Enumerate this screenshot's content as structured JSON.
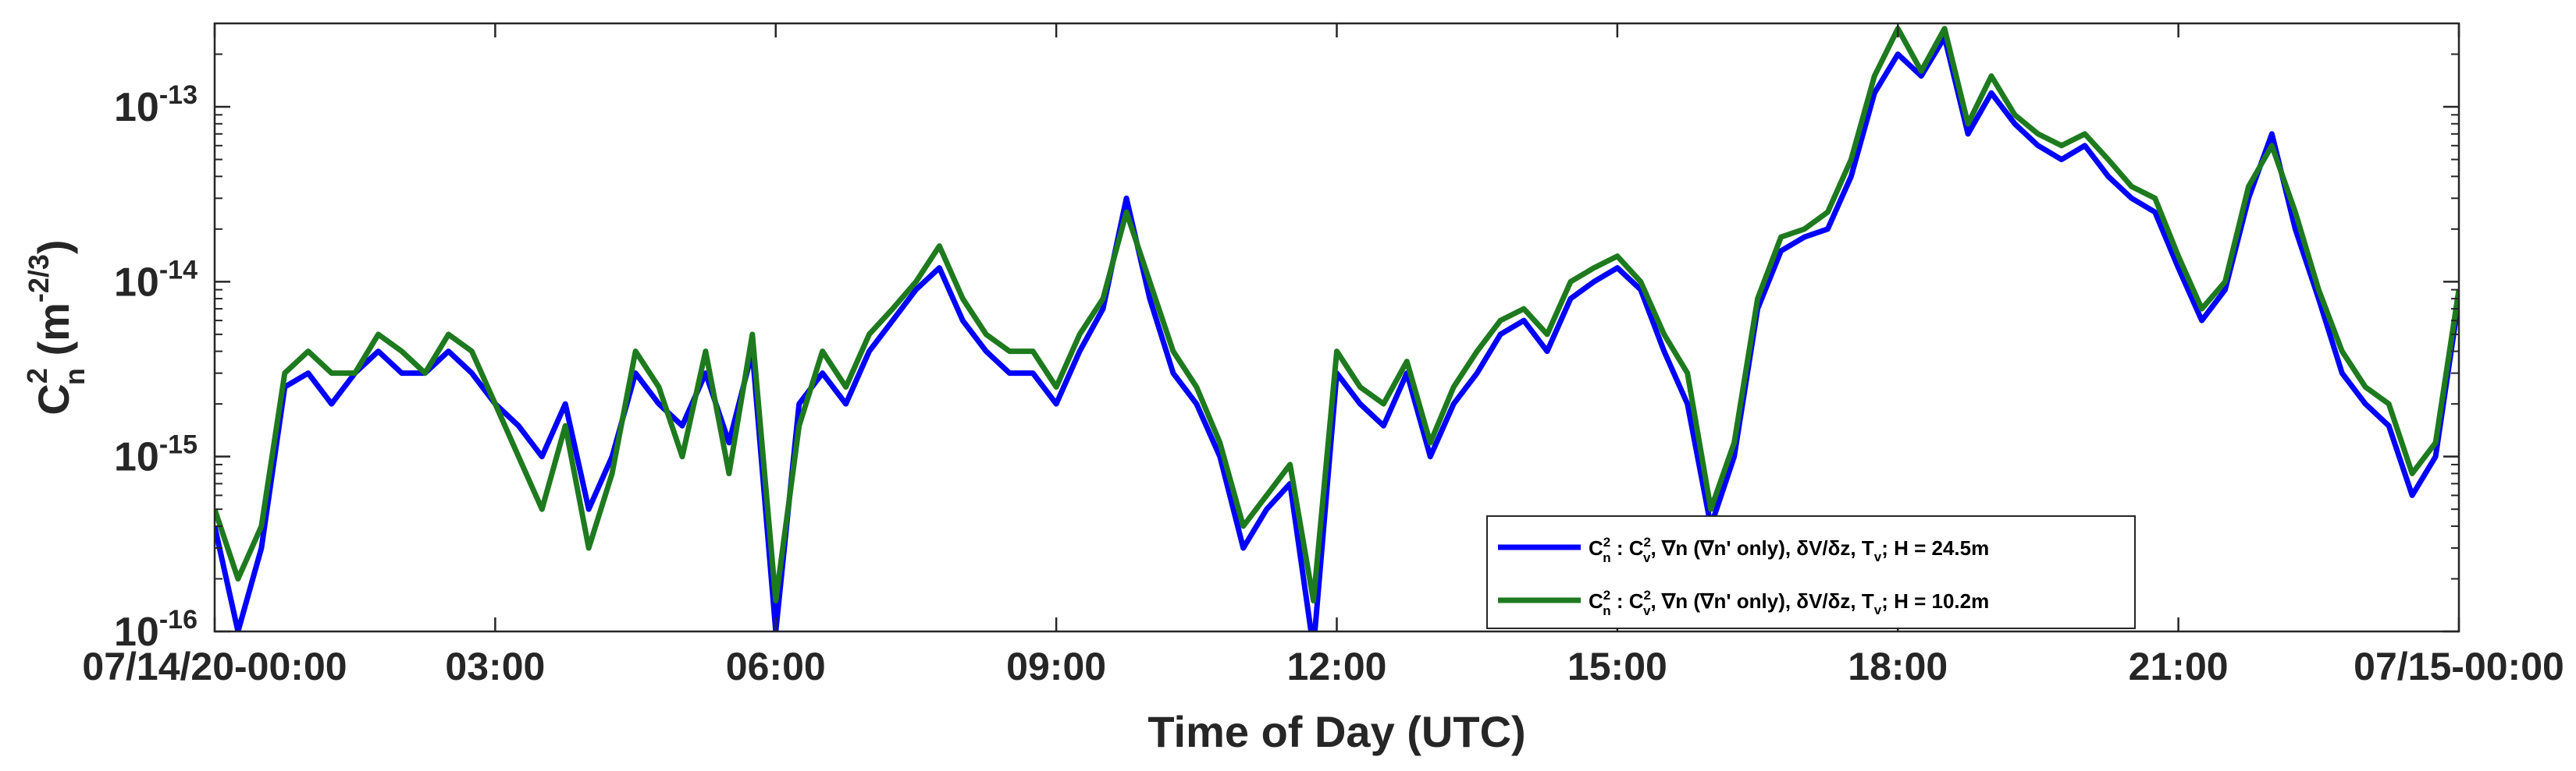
{
  "chart_data": {
    "type": "line",
    "xlabel": "Time of Day (UTC)",
    "ylabel": {
      "base": "C",
      "sup": "2",
      "sub": "n",
      "units_pre": "(m",
      "units_sup": "-2/3",
      "units_post": ")"
    },
    "x_range_hours": [
      0,
      24
    ],
    "y_scale": "log",
    "ylim": [
      1e-16,
      3e-13
    ],
    "grid": false,
    "legend_placement": "bottom-right",
    "x_ticks": [
      {
        "hour": 0,
        "label": "07/14/20-00:00"
      },
      {
        "hour": 3,
        "label": "03:00"
      },
      {
        "hour": 6,
        "label": "06:00"
      },
      {
        "hour": 9,
        "label": "09:00"
      },
      {
        "hour": 12,
        "label": "12:00"
      },
      {
        "hour": 15,
        "label": "15:00"
      },
      {
        "hour": 18,
        "label": "18:00"
      },
      {
        "hour": 21,
        "label": "21:00"
      },
      {
        "hour": 24,
        "label": "07/15-00:00"
      }
    ],
    "y_ticks": [
      {
        "value": 1e-16,
        "base": "10",
        "exp": "-16"
      },
      {
        "value": 1e-15,
        "base": "10",
        "exp": "-15"
      },
      {
        "value": 1e-14,
        "base": "10",
        "exp": "-14"
      },
      {
        "value": 1e-13,
        "base": "10",
        "exp": "-13"
      }
    ],
    "x_hours": [
      0.0,
      0.25,
      0.5,
      0.75,
      1.0,
      1.25,
      1.5,
      1.75,
      2.0,
      2.25,
      2.5,
      2.75,
      3.0,
      3.25,
      3.5,
      3.75,
      4.0,
      4.25,
      4.5,
      4.75,
      5.0,
      5.25,
      5.5,
      5.75,
      6.0,
      6.25,
      6.5,
      6.75,
      7.0,
      7.25,
      7.5,
      7.75,
      8.0,
      8.25,
      8.5,
      8.75,
      9.0,
      9.25,
      9.5,
      9.75,
      10.0,
      10.25,
      10.5,
      10.75,
      11.0,
      11.25,
      11.5,
      11.75,
      12.0,
      12.25,
      12.5,
      12.75,
      13.0,
      13.25,
      13.5,
      13.75,
      14.0,
      14.25,
      14.5,
      14.75,
      15.0,
      15.25,
      15.5,
      15.75,
      16.0,
      16.25,
      16.5,
      16.75,
      17.0,
      17.25,
      17.5,
      17.75,
      18.0,
      18.25,
      18.5,
      18.75,
      19.0,
      19.25,
      19.5,
      19.75,
      20.0,
      20.25,
      20.5,
      20.75,
      21.0,
      21.25,
      21.5,
      21.75,
      22.0,
      22.25,
      22.5,
      22.75,
      23.0,
      23.25,
      23.5,
      23.75,
      24.0
    ],
    "series": [
      {
        "name": "H = 24.5m",
        "color": "#0000ff",
        "values": [
          4e-16,
          1e-16,
          3e-16,
          2.5e-15,
          3e-15,
          2e-15,
          3e-15,
          4e-15,
          3e-15,
          3e-15,
          4e-15,
          3e-15,
          2e-15,
          1.5e-15,
          1e-15,
          2e-15,
          5e-16,
          1e-15,
          3e-15,
          2e-15,
          1.5e-15,
          3e-15,
          1.2e-15,
          4e-15,
          1e-16,
          2e-15,
          3e-15,
          2e-15,
          4e-15,
          6e-15,
          9e-15,
          1.2e-14,
          6e-15,
          4e-15,
          3e-15,
          3e-15,
          2e-15,
          4e-15,
          7e-15,
          3e-14,
          8e-15,
          3e-15,
          2e-15,
          1e-15,
          3e-16,
          5e-16,
          7e-16,
          8e-17,
          3e-15,
          2e-15,
          1.5e-15,
          3e-15,
          1e-15,
          2e-15,
          3e-15,
          5e-15,
          6e-15,
          4e-15,
          8e-15,
          1e-14,
          1.2e-14,
          9e-15,
          4e-15,
          2e-15,
          4e-16,
          1e-15,
          7e-15,
          1.5e-14,
          1.8e-14,
          2e-14,
          4e-14,
          1.2e-13,
          2e-13,
          1.5e-13,
          2.5e-13,
          7e-14,
          1.2e-13,
          8e-14,
          6e-14,
          5e-14,
          6e-14,
          4e-14,
          3e-14,
          2.5e-14,
          1.2e-14,
          6e-15,
          9e-15,
          3e-14,
          7e-14,
          2e-14,
          8e-15,
          3e-15,
          2e-15,
          1.5e-15,
          6e-16,
          1e-15,
          8e-15
        ]
      },
      {
        "name": "H = 10.2m",
        "color": "#1e7a1e",
        "values": [
          5e-16,
          2e-16,
          4e-16,
          3e-15,
          4e-15,
          3e-15,
          3e-15,
          5e-15,
          4e-15,
          3e-15,
          5e-15,
          4e-15,
          2e-15,
          1e-15,
          5e-16,
          1.5e-15,
          3e-16,
          8e-16,
          4e-15,
          2.5e-15,
          1e-15,
          4e-15,
          8e-16,
          5e-15,
          1.5e-16,
          1.5e-15,
          4e-15,
          2.5e-15,
          5e-15,
          7e-15,
          1e-14,
          1.6e-14,
          8e-15,
          5e-15,
          4e-15,
          4e-15,
          2.5e-15,
          5e-15,
          8e-15,
          2.5e-14,
          1e-14,
          4e-15,
          2.5e-15,
          1.2e-15,
          4e-16,
          6e-16,
          9e-16,
          1.5e-16,
          4e-15,
          2.5e-15,
          2e-15,
          3.5e-15,
          1.2e-15,
          2.5e-15,
          4e-15,
          6e-15,
          7e-15,
          5e-15,
          1e-14,
          1.2e-14,
          1.4e-14,
          1e-14,
          5e-15,
          3e-15,
          5e-16,
          1.2e-15,
          8e-15,
          1.8e-14,
          2e-14,
          2.5e-14,
          5e-14,
          1.5e-13,
          2.8e-13,
          1.6e-13,
          2.8e-13,
          8e-14,
          1.5e-13,
          9e-14,
          7e-14,
          6e-14,
          7e-14,
          5e-14,
          3.5e-14,
          3e-14,
          1.4e-14,
          7e-15,
          1e-14,
          3.5e-14,
          6e-14,
          2.5e-14,
          9e-15,
          4e-15,
          2.5e-15,
          2e-15,
          8e-16,
          1.2e-15,
          9e-15
        ]
      }
    ],
    "legend": [
      {
        "lead": "C",
        "lead_sup": "2",
        "lead_sub": "n",
        "mid1": " : C",
        "mid_sup": "2",
        "mid_sub": "v",
        "mid2": ", ∇n (∇n' only), δV/δz, T",
        "t_sub": "v",
        "tail": "; H = 24.5m",
        "color": "#0000ff"
      },
      {
        "lead": "C",
        "lead_sup": "2",
        "lead_sub": "n",
        "mid1": " : C",
        "mid_sup": "2",
        "mid_sub": "v",
        "mid2": ", ∇n (∇n' only), δV/δz, T",
        "t_sub": "v",
        "tail": "; H = 10.2m",
        "color": "#1e7a1e"
      }
    ]
  }
}
